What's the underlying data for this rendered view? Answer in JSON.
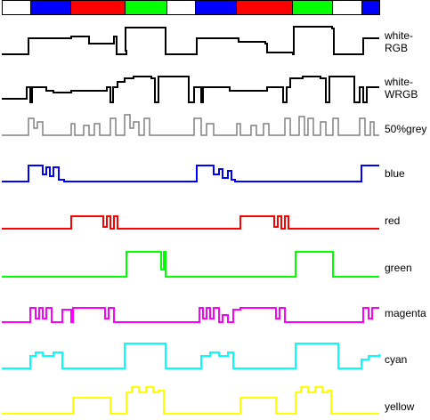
{
  "color_bar": [
    {
      "color": "#ffffff"
    },
    {
      "color": "#0000ff"
    },
    {
      "color": "#ff0000"
    },
    {
      "color": "#00ff00"
    },
    {
      "color": "#ffffff"
    },
    {
      "color": "#0000ff"
    },
    {
      "color": "#ff0000"
    },
    {
      "color": "#00ff00"
    },
    {
      "color": "#ffffff"
    },
    {
      "color": "#0000ff"
    }
  ],
  "traces": [
    {
      "id": "white-rgb",
      "label": "white-\nRGB",
      "color": "#000000",
      "pattern": "white"
    },
    {
      "id": "white-wrgb",
      "label": "white-\nWRGB",
      "color": "#000000",
      "pattern": "wrgb"
    },
    {
      "id": "grey50",
      "label": "50%grey",
      "color": "#808080",
      "pattern": "grey"
    },
    {
      "id": "blue",
      "label": "blue",
      "color": "#0000ff",
      "pattern": "blue"
    },
    {
      "id": "red",
      "label": "red",
      "color": "#ff0000",
      "pattern": "red"
    },
    {
      "id": "green",
      "label": "green",
      "color": "#00ff00",
      "pattern": "green"
    },
    {
      "id": "magenta",
      "label": "magenta",
      "color": "#ff00ff",
      "pattern": "magenta"
    },
    {
      "id": "cyan",
      "label": "cyan",
      "color": "#00ffff",
      "pattern": "cyan"
    },
    {
      "id": "yellow",
      "label": "yellow",
      "color": "#ffff00",
      "pattern": "yellow"
    }
  ]
}
